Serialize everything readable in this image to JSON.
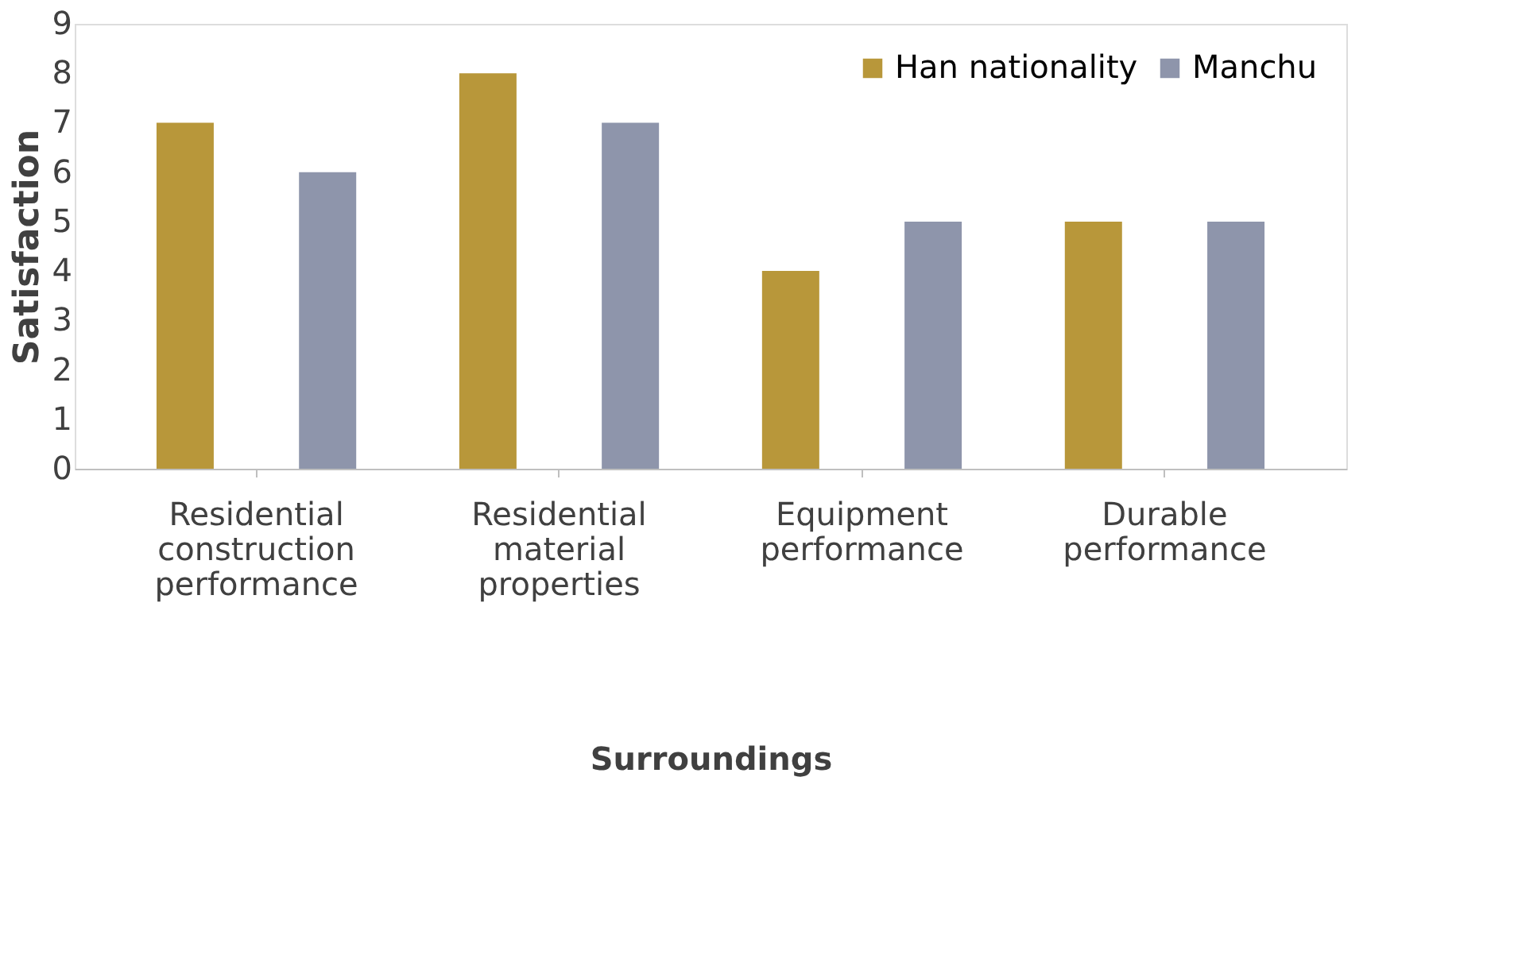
{
  "chart_data": {
    "type": "bar",
    "xlabel": "Surroundings",
    "ylabel": "Satisfaction",
    "categories": [
      "Residential construction performance",
      "Residential material properties",
      "Equipment performance",
      "Durable performance"
    ],
    "series": [
      {
        "name": "Han nationality",
        "color": "#b8973a",
        "values": [
          7,
          8,
          4,
          5
        ]
      },
      {
        "name": "Manchu",
        "color": "#8e95ab",
        "values": [
          6,
          7,
          5,
          5
        ]
      }
    ],
    "ylim": [
      0,
      9
    ],
    "yticks": [
      0,
      1,
      2,
      3,
      4,
      5,
      6,
      7,
      8,
      9
    ],
    "grid": false,
    "legend": "top right"
  }
}
